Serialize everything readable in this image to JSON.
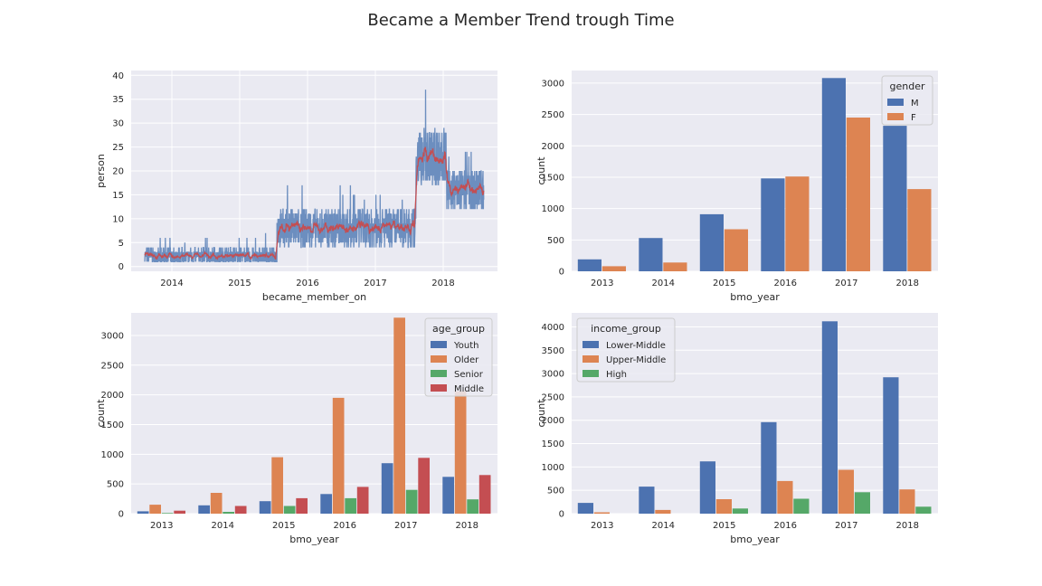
{
  "figure": {
    "title": "Became a Member Trend trough Time"
  },
  "chart_data": [
    {
      "type": "line",
      "id": "daily_members",
      "xlabel": "became_member_on",
      "ylabel": "person",
      "x_ticks": [
        "2014",
        "2015",
        "2016",
        "2017",
        "2018"
      ],
      "y_ticks": [
        0,
        5,
        10,
        15,
        20,
        25,
        30,
        35,
        40
      ],
      "ylim": [
        -1,
        41
      ],
      "xlim": [
        2013.4,
        2018.8
      ],
      "grid": true,
      "series": [
        {
          "color": "#6c8ebf",
          "values_note": "daily counts"
        },
        {
          "color": "#c44e52",
          "values_note": "rolling mean"
        }
      ],
      "segments": [
        {
          "x_start": 2013.6,
          "x_end": 2015.55,
          "base": 2.2,
          "noise": 1.6,
          "peak": 7
        },
        {
          "x_start": 2015.55,
          "x_end": 2017.6,
          "base": 8.0,
          "noise": 4.0,
          "peak": 18
        },
        {
          "x_start": 2017.6,
          "x_end": 2018.05,
          "base": 23.0,
          "noise": 6.0,
          "peak": 39
        },
        {
          "x_start": 2018.05,
          "x_end": 2018.6,
          "base": 16.0,
          "noise": 4.5,
          "peak": 25
        }
      ]
    },
    {
      "type": "bar",
      "id": "by_gender",
      "xlabel": "bmo_year",
      "ylabel": "count",
      "categories": [
        "2013",
        "2014",
        "2015",
        "2016",
        "2017",
        "2018"
      ],
      "y_ticks": [
        0,
        500,
        1000,
        1500,
        2000,
        2500,
        3000
      ],
      "ylim": [
        0,
        3200
      ],
      "grid": true,
      "legend": {
        "title": "gender",
        "placement": "top-right"
      },
      "series": [
        {
          "name": "M",
          "color": "#4c72b0",
          "values": [
            190,
            530,
            910,
            1480,
            3080,
            2320
          ]
        },
        {
          "name": "F",
          "color": "#dd8452",
          "values": [
            80,
            140,
            670,
            1510,
            2450,
            1310
          ]
        }
      ]
    },
    {
      "type": "bar",
      "id": "by_age_group",
      "xlabel": "bmo_year",
      "ylabel": "count",
      "categories": [
        "2013",
        "2014",
        "2015",
        "2016",
        "2017",
        "2018"
      ],
      "y_ticks": [
        0,
        500,
        1000,
        1500,
        2000,
        2500,
        3000
      ],
      "ylim": [
        0,
        3380
      ],
      "grid": true,
      "legend": {
        "title": "age_group",
        "placement": "top-right"
      },
      "series": [
        {
          "name": "Youth",
          "color": "#4c72b0",
          "values": [
            40,
            140,
            210,
            330,
            850,
            620
          ]
        },
        {
          "name": "Older",
          "color": "#dd8452",
          "values": [
            150,
            350,
            950,
            1950,
            3300,
            2060
          ]
        },
        {
          "name": "Senior",
          "color": "#55a868",
          "values": [
            10,
            30,
            130,
            260,
            400,
            240
          ]
        },
        {
          "name": "Middle",
          "color": "#c44e52",
          "values": [
            50,
            130,
            260,
            450,
            940,
            650
          ]
        }
      ]
    },
    {
      "type": "bar",
      "id": "by_income_group",
      "xlabel": "bmo_year",
      "ylabel": "count",
      "categories": [
        "2013",
        "2014",
        "2015",
        "2016",
        "2017",
        "2018"
      ],
      "y_ticks": [
        0,
        500,
        1000,
        1500,
        2000,
        2500,
        3000,
        3500,
        4000
      ],
      "ylim": [
        0,
        4300
      ],
      "grid": true,
      "legend": {
        "title": "income_group",
        "placement": "top-left"
      },
      "series": [
        {
          "name": "Lower-Middle",
          "color": "#4c72b0",
          "values": [
            230,
            580,
            1120,
            1960,
            4120,
            2920
          ]
        },
        {
          "name": "Upper-Middle",
          "color": "#dd8452",
          "values": [
            30,
            80,
            310,
            700,
            940,
            520
          ]
        },
        {
          "name": "High",
          "color": "#55a868",
          "values": [
            0,
            0,
            110,
            320,
            460,
            150
          ]
        }
      ]
    }
  ]
}
